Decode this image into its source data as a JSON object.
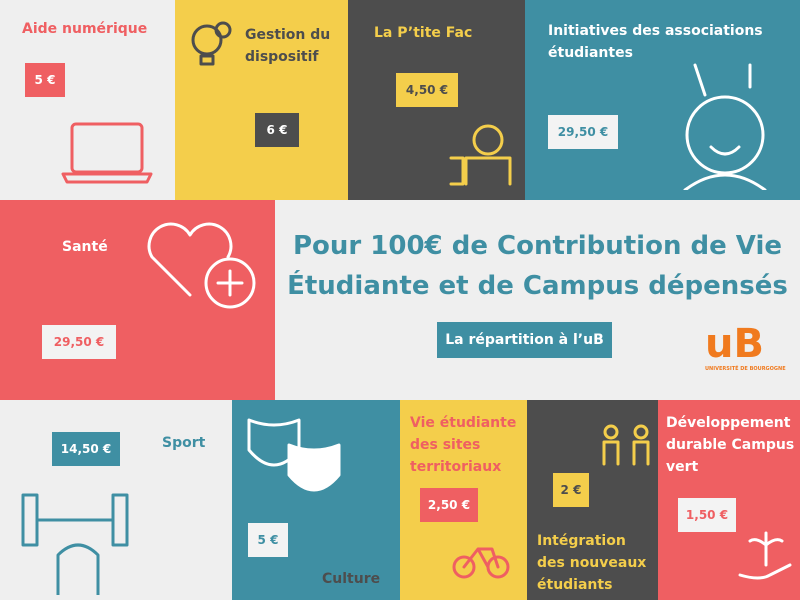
{
  "header": {
    "title_line1": "Pour 100€ de Contribution de Vie",
    "title_line2": "Étudiante et de Campus dépensés",
    "button": "La répartition à l’uB",
    "logo": "uB",
    "logo_sub": "UNIVERSITÉ DE BOURGOGNE"
  },
  "tiles": [
    {
      "label": "Aide numérique",
      "amount": "5 €"
    },
    {
      "label": "Gestion du dispositif",
      "amount": "6 €"
    },
    {
      "label": "La P’tite Fac",
      "amount": "4,50 €"
    },
    {
      "label": "Initiatives des associations étudiantes",
      "amount": "29,50 €"
    },
    {
      "label": "Santé",
      "amount": "29,50 €"
    },
    {
      "label": "Sport",
      "amount": "14,50 €"
    },
    {
      "label": "Culture",
      "amount": "5 €"
    },
    {
      "label": "Vie étudiante des sites territoriaux",
      "amount": "2,50 €"
    },
    {
      "label": "Intégration des nouveaux étudiants",
      "amount": "2 €"
    },
    {
      "label": "Développement durable Campus vert",
      "amount": "1,50 €"
    }
  ]
}
